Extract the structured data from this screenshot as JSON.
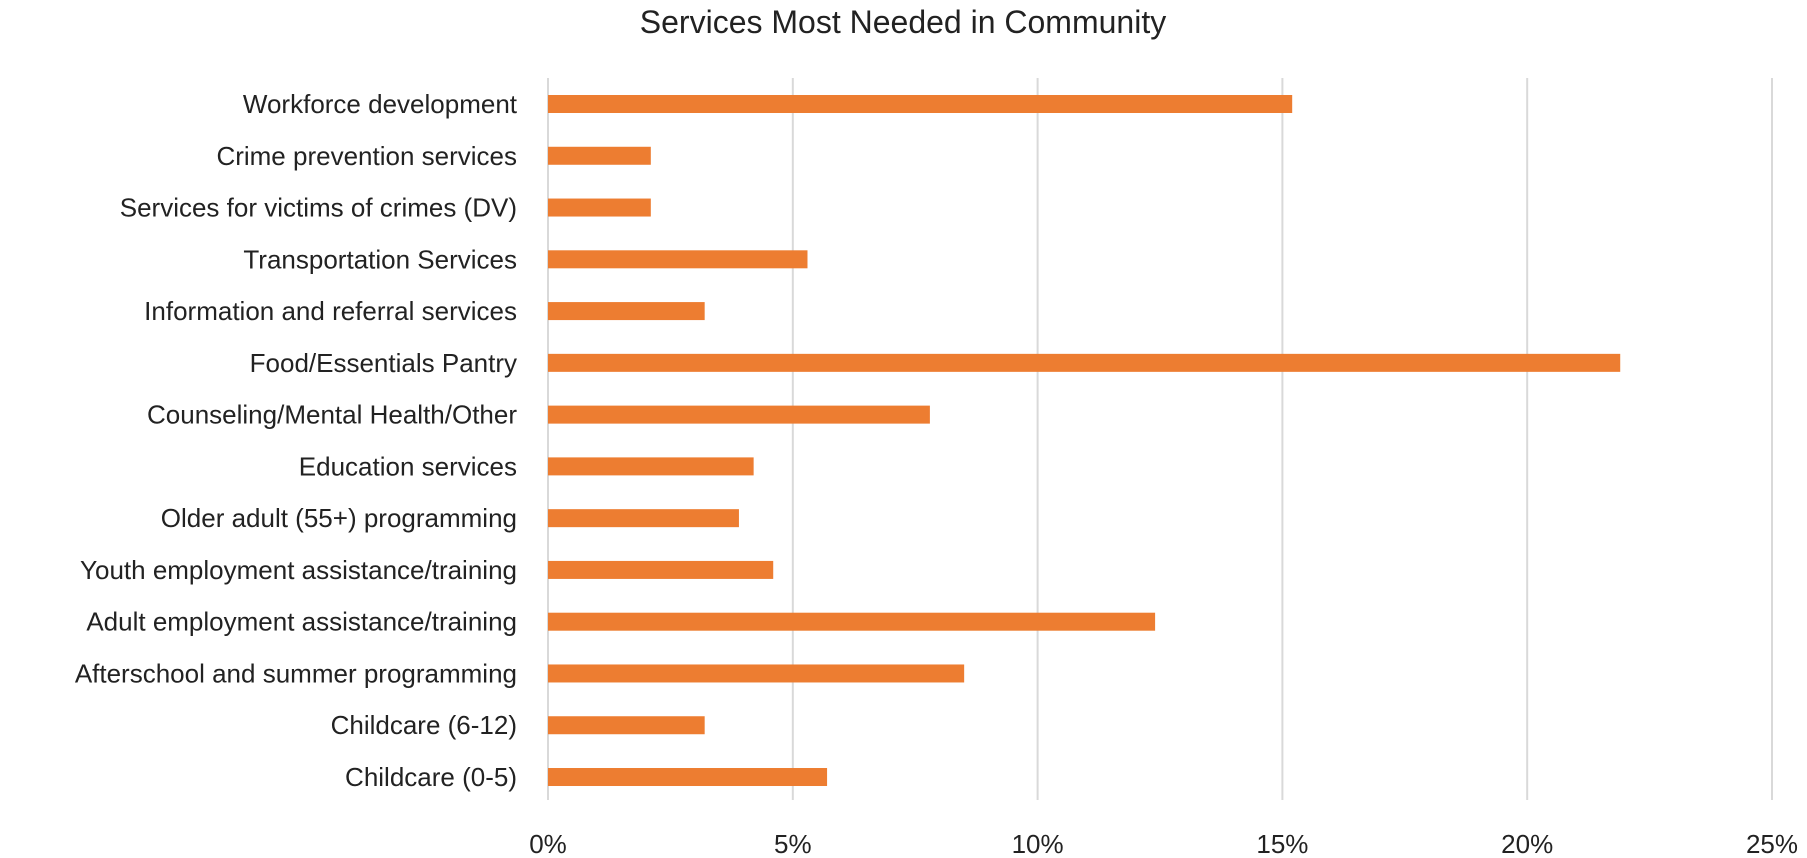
{
  "chart_data": {
    "type": "bar",
    "orientation": "horizontal",
    "title": "Services Most Needed in Community",
    "xlabel": "",
    "ylabel": "",
    "categories": [
      "Workforce development",
      "Crime prevention services",
      "Services for victims of crimes (DV)",
      "Transportation Services",
      "Information and referral services",
      "Food/Essentials Pantry",
      "Counseling/Mental Health/Other",
      "Education services",
      "Older adult (55+) programming",
      "Youth employment assistance/training",
      "Adult employment assistance/training",
      "Afterschool and summer programming",
      "Childcare (6-12)",
      "Childcare (0-5)"
    ],
    "values": [
      15.2,
      2.1,
      2.1,
      5.3,
      3.2,
      21.9,
      7.8,
      4.2,
      3.9,
      4.6,
      12.4,
      8.5,
      3.2,
      5.7
    ],
    "xlim": [
      0,
      25
    ],
    "xticks": [
      0,
      5,
      10,
      15,
      20,
      25
    ],
    "xtick_labels": [
      "0%",
      "5%",
      "10%",
      "15%",
      "20%",
      "25%"
    ],
    "grid": "vertical",
    "legend": "none",
    "bar_color": "#ED7D31",
    "grid_color": "#D9D9D9"
  }
}
